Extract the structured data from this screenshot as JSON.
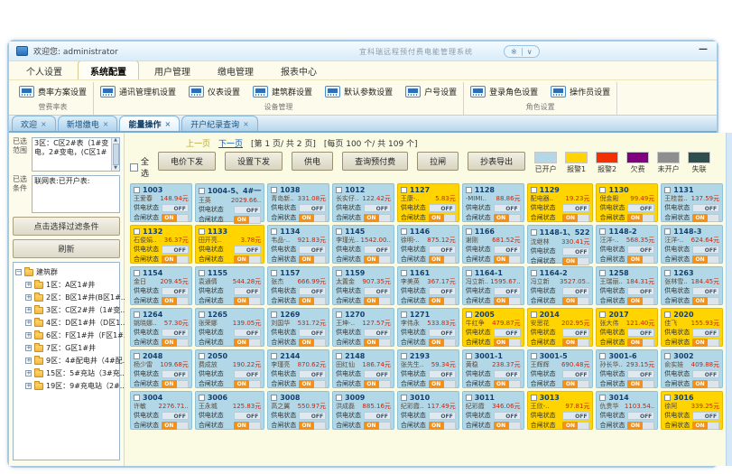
{
  "window": {
    "welcome": "欢迎您: administrator",
    "title": "宜科瑞远程预付费电能管理系统",
    "minimize": "—"
  },
  "icons": {
    "theme": "※",
    "dropdown": "∨",
    "close": "×",
    "expand": "+",
    "collapse": "−",
    "up": "▲",
    "down": "▼"
  },
  "menu": {
    "tabs": [
      {
        "label": "个人设置",
        "cls": ""
      },
      {
        "label": "系统配置",
        "cls": "active"
      },
      {
        "label": "用户管理",
        "cls": ""
      },
      {
        "label": "缴电管理",
        "cls": ""
      },
      {
        "label": "报表中心",
        "cls": ""
      }
    ]
  },
  "ribbon": {
    "groups": [
      {
        "label": "营费率表",
        "buttons": [
          "费率方案设置"
        ]
      },
      {
        "label": "设备管理",
        "buttons": [
          "通讯管理机设置",
          "仪表设置",
          "建筑群设置",
          "默认参数设置",
          "户号设置"
        ]
      },
      {
        "label": "角色设置",
        "buttons": [
          "登录角色设置",
          "操作员设置"
        ]
      }
    ]
  },
  "doc_tabs": [
    {
      "label": "欢迎",
      "cls": ""
    },
    {
      "label": "新增缴电",
      "cls": ""
    },
    {
      "label": "能量操作",
      "cls": "active"
    },
    {
      "label": "开户纪录查询",
      "cls": ""
    }
  ],
  "sidebar": {
    "selected_range_label": "已选范围",
    "selected_range_value": "3区：C区2#表（1#变电，2#变电，(C区1#",
    "selected_condition_label": "已选条件",
    "selected_condition_value": "联网表:已开户表:",
    "filter_button": "点击选择过滤条件",
    "refresh_button": "刷新",
    "tree": {
      "root": "建筑群",
      "items": [
        "1区：A区1#井",
        "2区：B区1#井(B区1#...",
        "3区：C区2#井（1#变...",
        "4区：D区1#井（D区1...",
        "6区：F区1#井（F区1#...",
        "7区：G区1#井",
        "9区：4#配电井（4#配...",
        "15区：5#充站（3#充...",
        "19区：9#充电站（2#..."
      ]
    }
  },
  "toolbar": {
    "pagination": {
      "prev": "上一页",
      "next": "下一页",
      "page_info": "[第 1 页/ 共 2 页]",
      "per_page_info": "[每页 100 个/ 共 109 个]"
    },
    "select_all": "全选",
    "buttons": [
      "电价下发",
      "设置下发",
      "供电",
      "查询预付费",
      "拉闸",
      "抄表导出"
    ],
    "legend": [
      {
        "label": "已开户",
        "color": "#b2d8e8"
      },
      {
        "label": "报警1",
        "color": "#ffd400"
      },
      {
        "label": "报警2",
        "color": "#f23000"
      },
      {
        "label": "欠费",
        "color": "#800080"
      },
      {
        "label": "未开户",
        "color": "#8e8e8e"
      },
      {
        "label": "失联",
        "color": "#2f4f4f"
      }
    ]
  },
  "cards": {
    "supply_label": "供电状态",
    "switch_label": "合闸状态",
    "off": "OFF",
    "on": "ON",
    "items": [
      {
        "id": "1003",
        "name": "王爱春",
        "balance": "148.94元",
        "status": "blue"
      },
      {
        "id": "1004-5、4#一",
        "name": "王英",
        "balance": "2029.66..",
        "status": "blue"
      },
      {
        "id": "1038",
        "name": "青岛新..",
        "balance": "331.08元",
        "status": "blue"
      },
      {
        "id": "1012",
        "name": "长实仔..",
        "balance": "122.42元",
        "status": "blue"
      },
      {
        "id": "1127",
        "name": "王康-..",
        "balance": "5.83元",
        "status": "yellow"
      },
      {
        "id": "1128",
        "name": "-MIMI..",
        "balance": "88.86元",
        "status": "blue"
      },
      {
        "id": "1129",
        "name": "配电器..",
        "balance": "19.23元",
        "status": "yellow"
      },
      {
        "id": "1130",
        "name": "倪金殿",
        "balance": "99.49元",
        "status": "yellow"
      },
      {
        "id": "1131",
        "name": "王桂芸..",
        "balance": "137.59元",
        "status": "blue"
      },
      {
        "id": "1132",
        "name": "石俊娟..",
        "balance": "36.37元",
        "status": "yellow"
      },
      {
        "id": "1133",
        "name": "田开亮..",
        "balance": "3.78元",
        "status": "yellow"
      },
      {
        "id": "1134",
        "name": "韦品-..",
        "balance": "921.83元",
        "status": "blue"
      },
      {
        "id": "1145",
        "name": "李瑾光..",
        "balance": "1542.00..",
        "status": "blue"
      },
      {
        "id": "1146",
        "name": "徐明-..",
        "balance": "875.12元",
        "status": "blue"
      },
      {
        "id": "1166",
        "name": "谢刚",
        "balance": "681.52元",
        "status": "blue"
      },
      {
        "id": "1148-1、522",
        "name": "沈继林",
        "balance": "330.41元",
        "status": "blue"
      },
      {
        "id": "1148-2",
        "name": "汪洋-..",
        "balance": "568.35元",
        "status": "blue"
      },
      {
        "id": "1148-3",
        "name": "汪洋-..",
        "balance": "624.64元",
        "status": "blue"
      },
      {
        "id": "1154",
        "name": "金日",
        "balance": "209.45元",
        "status": "blue"
      },
      {
        "id": "1155",
        "name": "袁通倩",
        "balance": "544.28元",
        "status": "blue"
      },
      {
        "id": "1157",
        "name": "张杰",
        "balance": "666.99元",
        "status": "blue"
      },
      {
        "id": "1159",
        "name": "太置金",
        "balance": "907.35元",
        "status": "blue"
      },
      {
        "id": "1161",
        "name": "李美英",
        "balance": "367.17元",
        "status": "blue"
      },
      {
        "id": "1164-1",
        "name": "冯立新..",
        "balance": "1595.67..",
        "status": "blue"
      },
      {
        "id": "1164-2",
        "name": "冯立新",
        "balance": "3527.05..",
        "status": "blue"
      },
      {
        "id": "1258",
        "name": "王瑞丽..",
        "balance": "184.31元",
        "status": "blue"
      },
      {
        "id": "1263",
        "name": "张林雪..",
        "balance": "184.45元",
        "status": "blue"
      },
      {
        "id": "1264",
        "name": "姚晓娜..",
        "balance": "57.30元",
        "status": "blue"
      },
      {
        "id": "1265",
        "name": "张荣娜",
        "balance": "139.05元",
        "status": "blue"
      },
      {
        "id": "1269",
        "name": "刘国华",
        "balance": "531.72元",
        "status": "blue"
      },
      {
        "id": "1270",
        "name": "王坤-..",
        "balance": "127.57元",
        "status": "blue"
      },
      {
        "id": "1271",
        "name": "李伟永",
        "balance": "533.83元",
        "status": "blue"
      },
      {
        "id": "2005",
        "name": "牛红争",
        "balance": "479.87元",
        "status": "yellow"
      },
      {
        "id": "2014",
        "name": "安思花",
        "balance": "202.95元",
        "status": "yellow"
      },
      {
        "id": "2017",
        "name": "张大伟",
        "balance": "121.40元",
        "status": "yellow"
      },
      {
        "id": "2020",
        "name": "佳飞",
        "balance": "155.93元",
        "status": "yellow"
      },
      {
        "id": "2048",
        "name": "杨少雷",
        "balance": "109.68元",
        "status": "blue"
      },
      {
        "id": "2050",
        "name": "费成放",
        "balance": "190.22元",
        "status": "blue"
      },
      {
        "id": "2144",
        "name": "李瑾亮",
        "balance": "870.62元",
        "status": "blue"
      },
      {
        "id": "2148",
        "name": "田红仙",
        "balance": "186.74元",
        "status": "blue"
      },
      {
        "id": "2193",
        "name": "张先生..",
        "balance": "59.34元",
        "status": "blue"
      },
      {
        "id": "3001-1",
        "name": "黄稳",
        "balance": "238.37元",
        "status": "blue"
      },
      {
        "id": "3001-5",
        "name": "王辉辉",
        "balance": "690.48元",
        "status": "blue"
      },
      {
        "id": "3001-6",
        "name": "孙长华..",
        "balance": "293.15元",
        "status": "blue"
      },
      {
        "id": "3002",
        "name": "俞实娃",
        "balance": "409.88元",
        "status": "blue"
      },
      {
        "id": "3004",
        "name": "许敏",
        "balance": "2276.71..",
        "status": "blue"
      },
      {
        "id": "3006",
        "name": "王永城",
        "balance": "125.83元",
        "status": "blue"
      },
      {
        "id": "3008",
        "name": "高之翼",
        "balance": "550.97元",
        "status": "blue"
      },
      {
        "id": "3009",
        "name": "洪成磊",
        "balance": "885.16元",
        "status": "blue"
      },
      {
        "id": "3010",
        "name": "纪彩霞..",
        "balance": "117.49元",
        "status": "blue"
      },
      {
        "id": "3011",
        "name": "纪彩霞",
        "balance": "346.06元",
        "status": "blue"
      },
      {
        "id": "3013",
        "name": "王欣-..",
        "balance": "97.81元",
        "status": "yellow"
      },
      {
        "id": "3014",
        "name": "仇贵华",
        "balance": "1103.54..",
        "status": "blue"
      },
      {
        "id": "3016",
        "name": "徐阿",
        "balance": "339.25元",
        "status": "yellow"
      }
    ]
  }
}
